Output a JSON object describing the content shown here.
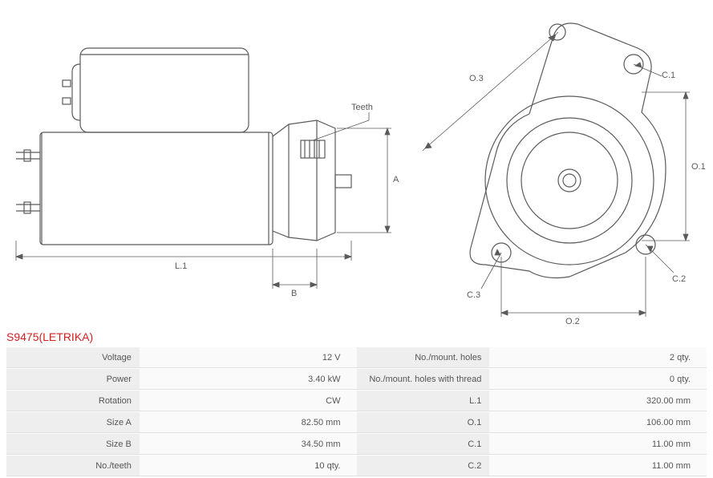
{
  "title": "S9475(LETRIKA)",
  "title_color": "#d22020",
  "stroke_color": "#5a5a5a",
  "label_color": "#5a5a5a",
  "stroke_width": 1.2,
  "dim_labels": {
    "teeth": "Teeth",
    "A": "A",
    "B": "B",
    "L1": "L.1",
    "O1": "O.1",
    "O2": "O.2",
    "O3": "O.3",
    "C1": "C.1",
    "C2": "C.2",
    "C3": "C.3"
  },
  "specs_left": [
    {
      "label": "Voltage",
      "value": "12 V"
    },
    {
      "label": "Power",
      "value": "3.40 kW"
    },
    {
      "label": "Rotation",
      "value": "CW"
    },
    {
      "label": "Size A",
      "value": "82.50 mm"
    },
    {
      "label": "Size B",
      "value": "34.50 mm"
    },
    {
      "label": "No./teeth",
      "value": "10 qty."
    }
  ],
  "specs_right": [
    {
      "label": "No./mount. holes",
      "value": "2 qty."
    },
    {
      "label": "No./mount. holes with thread",
      "value": "0 qty."
    },
    {
      "label": "L.1",
      "value": "320.00 mm"
    },
    {
      "label": "O.1",
      "value": "106.00 mm"
    },
    {
      "label": "C.1",
      "value": "11.00 mm"
    },
    {
      "label": "C.2",
      "value": "11.00 mm"
    }
  ]
}
